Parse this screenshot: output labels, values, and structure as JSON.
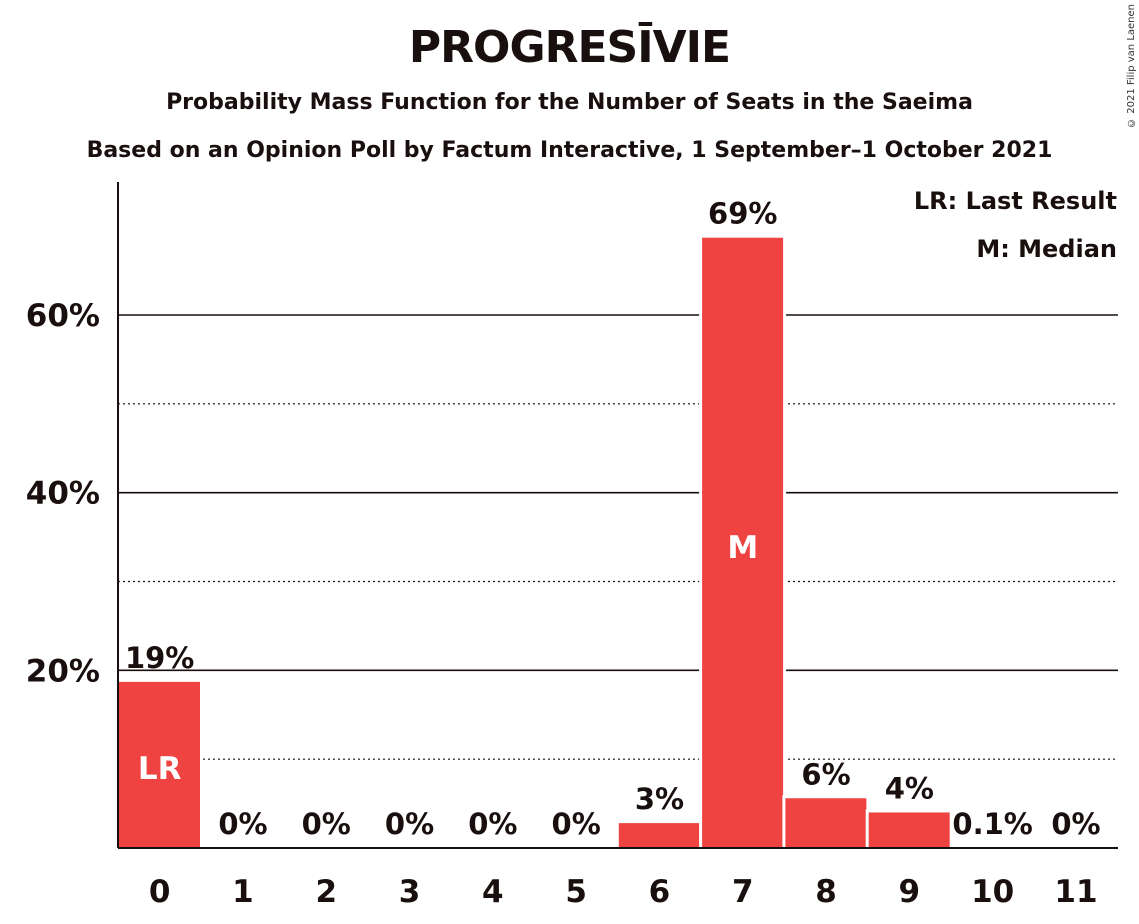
{
  "title": "PROGRESĪVIE",
  "subtitle": "Probability Mass Function for the Number of Seats in the Saeima",
  "subtitle2": "Based on an Opinion Poll by Factum Interactive, 1 September–1 October 2021",
  "copyright": "© 2021 Filip van Laenen",
  "legend": {
    "last_result": "LR: Last Result",
    "median": "M: Median"
  },
  "colors": {
    "bar": "#ee4340",
    "text": "#1a0f0f"
  },
  "chart_data": {
    "type": "bar",
    "categories": [
      "0",
      "1",
      "2",
      "3",
      "4",
      "5",
      "6",
      "7",
      "8",
      "9",
      "10",
      "11"
    ],
    "values": [
      18.7,
      0,
      0,
      0,
      0,
      0,
      2.8,
      68.7,
      5.6,
      4.0,
      0.1,
      0
    ],
    "data_labels": [
      "19%",
      "0%",
      "0%",
      "0%",
      "0%",
      "0%",
      "3%",
      "69%",
      "6%",
      "4%",
      "0.1%",
      "0%"
    ],
    "bar_markers": {
      "0": "LR",
      "7": "M"
    },
    "yticks": [
      20,
      40,
      60
    ],
    "ytick_labels": [
      "20%",
      "40%",
      "60%"
    ],
    "ylim": [
      0,
      75
    ],
    "minor_grid": [
      10,
      30,
      50
    ],
    "grid": true,
    "legend_position": "top-right"
  }
}
